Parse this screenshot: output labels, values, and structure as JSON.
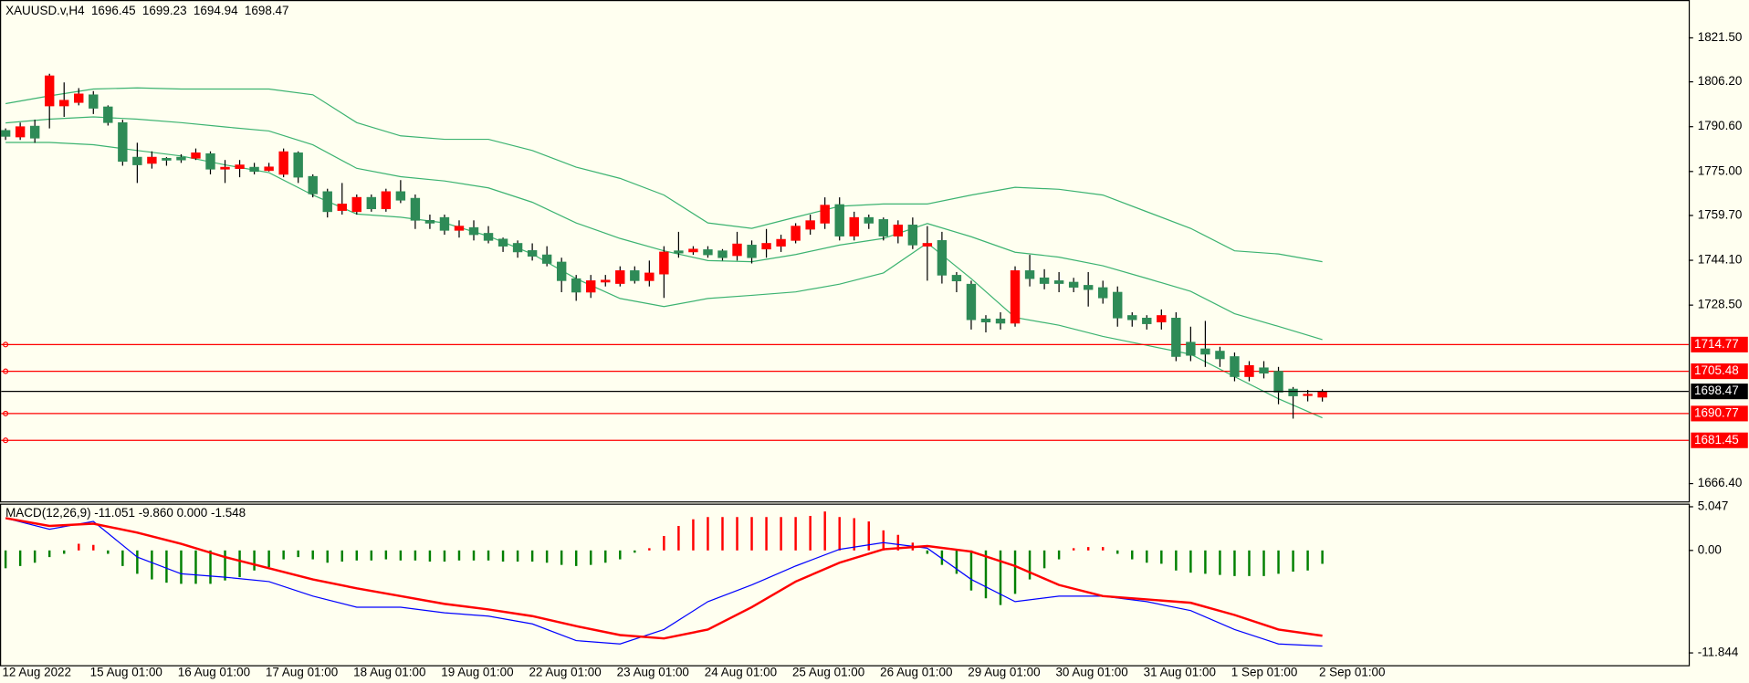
{
  "chart_data": [
    {
      "type": "candlestick",
      "title": "XAUUSD.v,H4",
      "categories": [
        "12 Aug 2022",
        null,
        null,
        null,
        null,
        null,
        "15 Aug 01:00",
        null,
        null,
        null,
        null,
        null,
        "16 Aug 01:00",
        null,
        null,
        null,
        null,
        null,
        "17 Aug 01:00",
        null,
        null,
        null,
        null,
        null,
        "18 Aug 01:00",
        null,
        null,
        null,
        null,
        null,
        "19 Aug 01:00",
        null,
        null,
        null,
        null,
        null,
        "22 Aug 01:00",
        null,
        null,
        null,
        null,
        null,
        "23 Aug 01:00",
        null,
        null,
        null,
        null,
        null,
        "24 Aug 01:00",
        null,
        null,
        null,
        null,
        null,
        "25 Aug 01:00",
        null,
        null,
        null,
        null,
        null,
        "26 Aug 01:00",
        null,
        null,
        null,
        null,
        null,
        "29 Aug 01:00",
        null,
        null,
        null,
        null,
        null,
        "30 Aug 01:00",
        null,
        null,
        null,
        null,
        null,
        "31 Aug 01:00",
        null,
        null,
        null,
        null,
        null,
        "1 Sep 01:00",
        null,
        null,
        null,
        null,
        null,
        "2 Sep 01:00"
      ],
      "open": [
        1789.3,
        1787,
        1790.8,
        1797.8,
        1797.8,
        1799,
        1801.7,
        1797.5,
        1792,
        1780,
        1777.8,
        1779.6,
        1780,
        1779.6,
        1781.2,
        1775.8,
        1776,
        1776.5,
        1775.3,
        1774,
        1781.5,
        1773.3,
        1768,
        1761.4,
        1761,
        1766,
        1762,
        1768,
        1765.7,
        1758,
        1759,
        1754.5,
        1755.5,
        1753.5,
        1751.5,
        1750,
        1747.5,
        1746,
        1743.5,
        1737.7,
        1733,
        1736.5,
        1736,
        1740.5,
        1737,
        1739.3,
        1747.4,
        1747,
        1747.8,
        1747.4,
        1745.7,
        1749.4,
        1748,
        1749,
        1751,
        1754.9,
        1757,
        1763.5,
        1752.5,
        1759,
        1758.3,
        1752.5,
        1756.4,
        1749,
        1751,
        1738.9,
        1735.8,
        1723.7,
        1723.7,
        1722.2,
        1740.5,
        1738,
        1737,
        1736.5,
        1735.4,
        1734.6,
        1733,
        1724.9,
        1724,
        1722.6,
        1724,
        1715.6,
        1713.3,
        1712.5,
        1710.6,
        1703.6,
        1706.7,
        1705.5,
        1699.3,
        1697,
        1696.45
      ],
      "high": [
        1790,
        1792,
        1793,
        1809,
        1806,
        1804,
        1803,
        1798,
        1793,
        1785,
        1782,
        1780,
        1781,
        1783,
        1782,
        1779,
        1779,
        1778,
        1778,
        1783,
        1782,
        1774,
        1769,
        1771,
        1767,
        1767,
        1769,
        1772,
        1767,
        1760,
        1760,
        1758,
        1758,
        1756,
        1752,
        1751,
        1750,
        1749,
        1745,
        1739,
        1739,
        1739,
        1742,
        1742,
        1744,
        1749,
        1754,
        1749,
        1749,
        1748,
        1754,
        1751,
        1755,
        1753,
        1757,
        1760,
        1766,
        1766,
        1761,
        1760,
        1759,
        1758,
        1759,
        1756,
        1754,
        1740,
        1737,
        1725,
        1726,
        1742,
        1746,
        1741,
        1740,
        1738,
        1740,
        1737,
        1735,
        1726,
        1725,
        1727,
        1726,
        1721,
        1723,
        1714,
        1712,
        1709,
        1709,
        1707,
        1700,
        1699,
        1699.23
      ],
      "low": [
        1786,
        1786,
        1785,
        1790,
        1794,
        1798,
        1795,
        1791,
        1777,
        1771,
        1776,
        1777,
        1778,
        1779,
        1774,
        1771,
        1773,
        1774,
        1775,
        1773,
        1771,
        1766,
        1759,
        1760,
        1760,
        1761,
        1761,
        1764,
        1755,
        1755,
        1753,
        1752,
        1751,
        1750,
        1747,
        1745,
        1744,
        1742,
        1733,
        1730,
        1731,
        1735,
        1735,
        1736,
        1735,
        1731,
        1745,
        1746,
        1745,
        1744,
        1744,
        1743,
        1745,
        1747,
        1750,
        1753,
        1755,
        1751,
        1751,
        1755,
        1751,
        1750,
        1748,
        1737,
        1736,
        1733,
        1720,
        1719,
        1720,
        1721,
        1735,
        1734,
        1733,
        1733,
        1728,
        1729,
        1721,
        1721,
        1720,
        1720,
        1709,
        1709,
        1707,
        1707,
        1702,
        1702,
        1703,
        1694,
        1689,
        1695,
        1694.94
      ],
      "close": [
        1787.2,
        1790.6,
        1786.6,
        1808.3,
        1799.8,
        1802,
        1797,
        1792,
        1778.5,
        1777.3,
        1780,
        1778.9,
        1779,
        1781.5,
        1775.8,
        1776.5,
        1777.3,
        1775,
        1776.6,
        1781.9,
        1773,
        1767.2,
        1761,
        1763.7,
        1766,
        1762,
        1768,
        1765,
        1758,
        1757,
        1754.5,
        1756,
        1753,
        1751,
        1749,
        1747,
        1745.5,
        1743,
        1737,
        1733,
        1737,
        1737.2,
        1740.5,
        1737,
        1739.7,
        1747,
        1746.6,
        1748,
        1746,
        1745,
        1749.8,
        1745,
        1750,
        1751.4,
        1756,
        1757.9,
        1763.3,
        1752.5,
        1759,
        1757,
        1752.5,
        1756.4,
        1749.4,
        1750,
        1738.9,
        1736.9,
        1723.4,
        1722.6,
        1722.2,
        1740.5,
        1737.7,
        1736,
        1736,
        1734.7,
        1733.9,
        1731,
        1724,
        1723.4,
        1722,
        1724.9,
        1710.6,
        1711,
        1711.4,
        1709.8,
        1703.6,
        1707.5,
        1704.8,
        1698.2,
        1696.9,
        1697.5,
        1698.47
      ],
      "up_color": "#ff0000",
      "down_color": "#2e8b57",
      "series": [
        {
          "color": "#3cb371",
          "x": [
            0,
            3,
            6,
            9,
            12,
            15,
            18,
            21,
            24,
            27,
            30,
            33,
            36,
            39,
            42,
            45,
            48,
            51,
            54,
            57,
            60,
            63,
            66,
            69,
            72,
            75,
            78,
            81,
            84,
            87,
            90
          ],
          "values": [
            1798.6,
            1801.3,
            1803.7,
            1804.1,
            1803.7,
            1803.7,
            1803.7,
            1801.7,
            1792.0,
            1787.4,
            1786.2,
            1786.2,
            1782.3,
            1776.5,
            1772.6,
            1766.8,
            1757.1,
            1755.2,
            1759.1,
            1762.9,
            1763.7,
            1763.7,
            1766.8,
            1769.5,
            1768.8,
            1766.8,
            1761.0,
            1755.2,
            1747.4,
            1746.3,
            1743.6
          ]
        },
        {
          "color": "#3cb371",
          "x": [
            0,
            3,
            6,
            9,
            12,
            15,
            18,
            21,
            24,
            27,
            30,
            33,
            36,
            39,
            42,
            45,
            48,
            51,
            54,
            57,
            60,
            63,
            66,
            69,
            72,
            75,
            78,
            81,
            84,
            87,
            90
          ],
          "values": [
            1791.9,
            1793.2,
            1794.0,
            1793.2,
            1792.0,
            1790.5,
            1789.1,
            1784.3,
            1776.1,
            1773.2,
            1771.7,
            1769.3,
            1764.3,
            1757.1,
            1751.7,
            1747.4,
            1744.0,
            1743.6,
            1746.1,
            1749.4,
            1751.7,
            1756.9,
            1752.3,
            1746.9,
            1745.2,
            1742.2,
            1737.8,
            1733.3,
            1725.5,
            1721.1,
            1716.5
          ]
        },
        {
          "color": "#3cb371",
          "x": [
            0,
            3,
            6,
            9,
            12,
            15,
            18,
            21,
            24,
            27,
            30,
            33,
            36,
            39,
            42,
            45,
            48,
            51,
            54,
            57,
            60,
            63,
            66,
            69,
            72,
            75,
            78,
            81,
            84,
            87,
            90
          ],
          "values": [
            1785.1,
            1785.1,
            1784.3,
            1782.3,
            1780.4,
            1777.3,
            1774.6,
            1766.8,
            1760.2,
            1759.1,
            1757.1,
            1752.5,
            1746.3,
            1737.7,
            1730.8,
            1728.0,
            1730.8,
            1731.9,
            1733.1,
            1735.8,
            1739.7,
            1750.1,
            1737.7,
            1724.2,
            1721.5,
            1717.6,
            1714.5,
            1711.4,
            1703.6,
            1695.9,
            1689.3
          ]
        }
      ],
      "levels": [
        1714.77,
        1705.48,
        1690.77,
        1681.45
      ],
      "level_color": "#ff0000",
      "bid_color": "#000000",
      "ylim": [
        1660.2,
        1833.9
      ],
      "yticks": [
        {
          "value": 1821.5,
          "label": "1821.50"
        },
        {
          "value": 1806.2,
          "label": "1806.20"
        },
        {
          "value": 1790.6,
          "label": "1790.60"
        },
        {
          "value": 1775,
          "label": "1775.00"
        },
        {
          "value": 1759.7,
          "label": "1759.70"
        },
        {
          "value": 1744.1,
          "label": "1744.10"
        },
        {
          "value": 1728.5,
          "label": "1728.50"
        },
        {
          "value": 1666.4,
          "label": "1666.40"
        }
      ],
      "grid": false
    },
    {
      "type": "macd",
      "title": "MACD(12,26,9) -11.051 -9.860 0.000 -1.548",
      "histogram": [
        -2.06,
        -1.8,
        -1.42,
        -0.77,
        -0.39,
        0.77,
        0.64,
        -0.39,
        -1.8,
        -2.7,
        -3.35,
        -3.73,
        -3.86,
        -3.86,
        -3.86,
        -3.47,
        -3.09,
        -2.32,
        -1.93,
        -1.03,
        -0.77,
        -1.03,
        -1.42,
        -1.29,
        -1.16,
        -1.16,
        -1.03,
        -1.16,
        -1.16,
        -1.29,
        -1.29,
        -1.16,
        -1.16,
        -1.16,
        -1.29,
        -1.29,
        -1.29,
        -1.42,
        -1.67,
        -1.8,
        -1.67,
        -1.42,
        -1.03,
        -0.26,
        0.26,
        1.67,
        2.83,
        3.6,
        3.86,
        3.86,
        3.86,
        3.86,
        3.86,
        3.86,
        3.86,
        3.99,
        4.5,
        3.86,
        3.73,
        3.35,
        2.32,
        1.8,
        0.9,
        -0.39,
        -1.67,
        -2.7,
        -4.63,
        -5.53,
        -6.31,
        -5.02,
        -3.35,
        -2.06,
        -1.03,
        0.26,
        0.39,
        0.39,
        -0.39,
        -1.03,
        -1.42,
        -1.54,
        -2.32,
        -2.57,
        -2.7,
        -2.83,
        -2.96,
        -2.96,
        -2.96,
        -2.7,
        -2.45,
        -2.32,
        -1.548
      ],
      "up_color": "#ff0000",
      "down_color": "#008000",
      "series": [
        {
          "color": "#0000ff",
          "x": [
            0,
            3,
            6,
            9,
            12,
            15,
            18,
            21,
            24,
            27,
            30,
            33,
            36,
            39,
            42,
            45,
            48,
            51,
            54,
            57,
            60,
            63,
            66,
            69,
            72,
            75,
            78,
            81,
            84,
            87,
            90
          ],
          "values": [
            3.73,
            2.45,
            3.35,
            -0.77,
            -2.7,
            -3.09,
            -3.6,
            -5.28,
            -6.56,
            -6.56,
            -7.21,
            -7.59,
            -8.49,
            -10.42,
            -10.81,
            -9.14,
            -5.92,
            -3.99,
            -1.8,
            0.13,
            0.9,
            0.26,
            -3.35,
            -5.92,
            -5.28,
            -5.28,
            -5.92,
            -6.95,
            -9.14,
            -10.81,
            -11.051
          ]
        },
        {
          "color": "#ff0000",
          "x": [
            0,
            3,
            6,
            9,
            12,
            15,
            18,
            21,
            24,
            27,
            30,
            33,
            36,
            39,
            42,
            45,
            48,
            51,
            54,
            57,
            60,
            63,
            66,
            69,
            72,
            75,
            78,
            81,
            84,
            87,
            90
          ],
          "values": [
            3.73,
            2.83,
            3.09,
            2.06,
            0.77,
            -0.77,
            -2.06,
            -3.35,
            -4.38,
            -5.28,
            -6.18,
            -6.82,
            -7.59,
            -8.75,
            -9.78,
            -10.17,
            -9.14,
            -6.56,
            -3.6,
            -1.42,
            0.13,
            0.51,
            -0.13,
            -1.8,
            -3.99,
            -5.28,
            -5.66,
            -6.05,
            -7.46,
            -9.14,
            -9.86
          ]
        }
      ],
      "ylim": [
        -13.26,
        5.41
      ],
      "yticks": [
        5.047,
        {
          "value": 0,
          "label": "0.00"
        },
        -11.844
      ]
    }
  ]
}
